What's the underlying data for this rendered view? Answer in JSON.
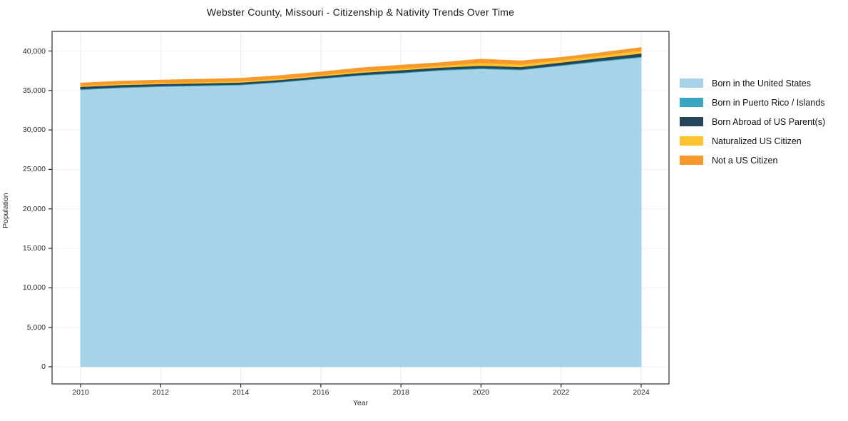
{
  "title": "Webster County, Missouri - Citizenship & Nativity Trends Over Time",
  "axes": {
    "xlabel": "Year",
    "ylabel": "Population",
    "x_tick_labels": [
      "2010",
      "2012",
      "2014",
      "2016",
      "2018",
      "2020",
      "2022",
      "2024"
    ],
    "y_tick_labels": [
      "0",
      "5,000",
      "10,000",
      "15,000",
      "20,000",
      "25,000",
      "30,000",
      "35,000",
      "40,000"
    ]
  },
  "chart_data": {
    "type": "area",
    "stacked": true,
    "title": "Webster County, Missouri - Citizenship & Nativity Trends Over Time",
    "xlabel": "Year",
    "ylabel": "Population",
    "x": [
      2010,
      2011,
      2012,
      2013,
      2014,
      2015,
      2016,
      2017,
      2018,
      2019,
      2020,
      2021,
      2022,
      2023,
      2024
    ],
    "x_ticks": [
      2010,
      2012,
      2014,
      2016,
      2018,
      2020,
      2022,
      2024
    ],
    "y_ticks": [
      0,
      5000,
      10000,
      15000,
      20000,
      25000,
      30000,
      35000,
      40000
    ],
    "ylim": [
      0,
      40000
    ],
    "grid": true,
    "legend_position": "right",
    "series": [
      {
        "name": "Born in the United States",
        "color": "#a7d3e8",
        "values": [
          35100,
          35350,
          35500,
          35600,
          35700,
          36050,
          36500,
          36900,
          37200,
          37550,
          37750,
          37600,
          38150,
          38700,
          39200
        ]
      },
      {
        "name": "Born in Puerto Rico / Islands",
        "color": "#38a5c1",
        "values": [
          90,
          90,
          80,
          80,
          80,
          80,
          80,
          90,
          90,
          100,
          100,
          100,
          90,
          100,
          110
        ]
      },
      {
        "name": "Born Abroad of US Parent(s)",
        "color": "#25465a",
        "values": [
          300,
          280,
          260,
          250,
          250,
          240,
          240,
          280,
          300,
          280,
          310,
          300,
          330,
          350,
          400
        ]
      },
      {
        "name": "Naturalized US Citizen",
        "color": "#fcc22f",
        "values": [
          150,
          150,
          160,
          160,
          170,
          170,
          160,
          200,
          210,
          220,
          360,
          330,
          310,
          300,
          380
        ]
      },
      {
        "name": "Not a US Citizen",
        "color": "#f89a2b",
        "values": [
          300,
          310,
          320,
          330,
          340,
          350,
          360,
          390,
          400,
          380,
          450,
          420,
          310,
          330,
          350
        ]
      }
    ]
  }
}
